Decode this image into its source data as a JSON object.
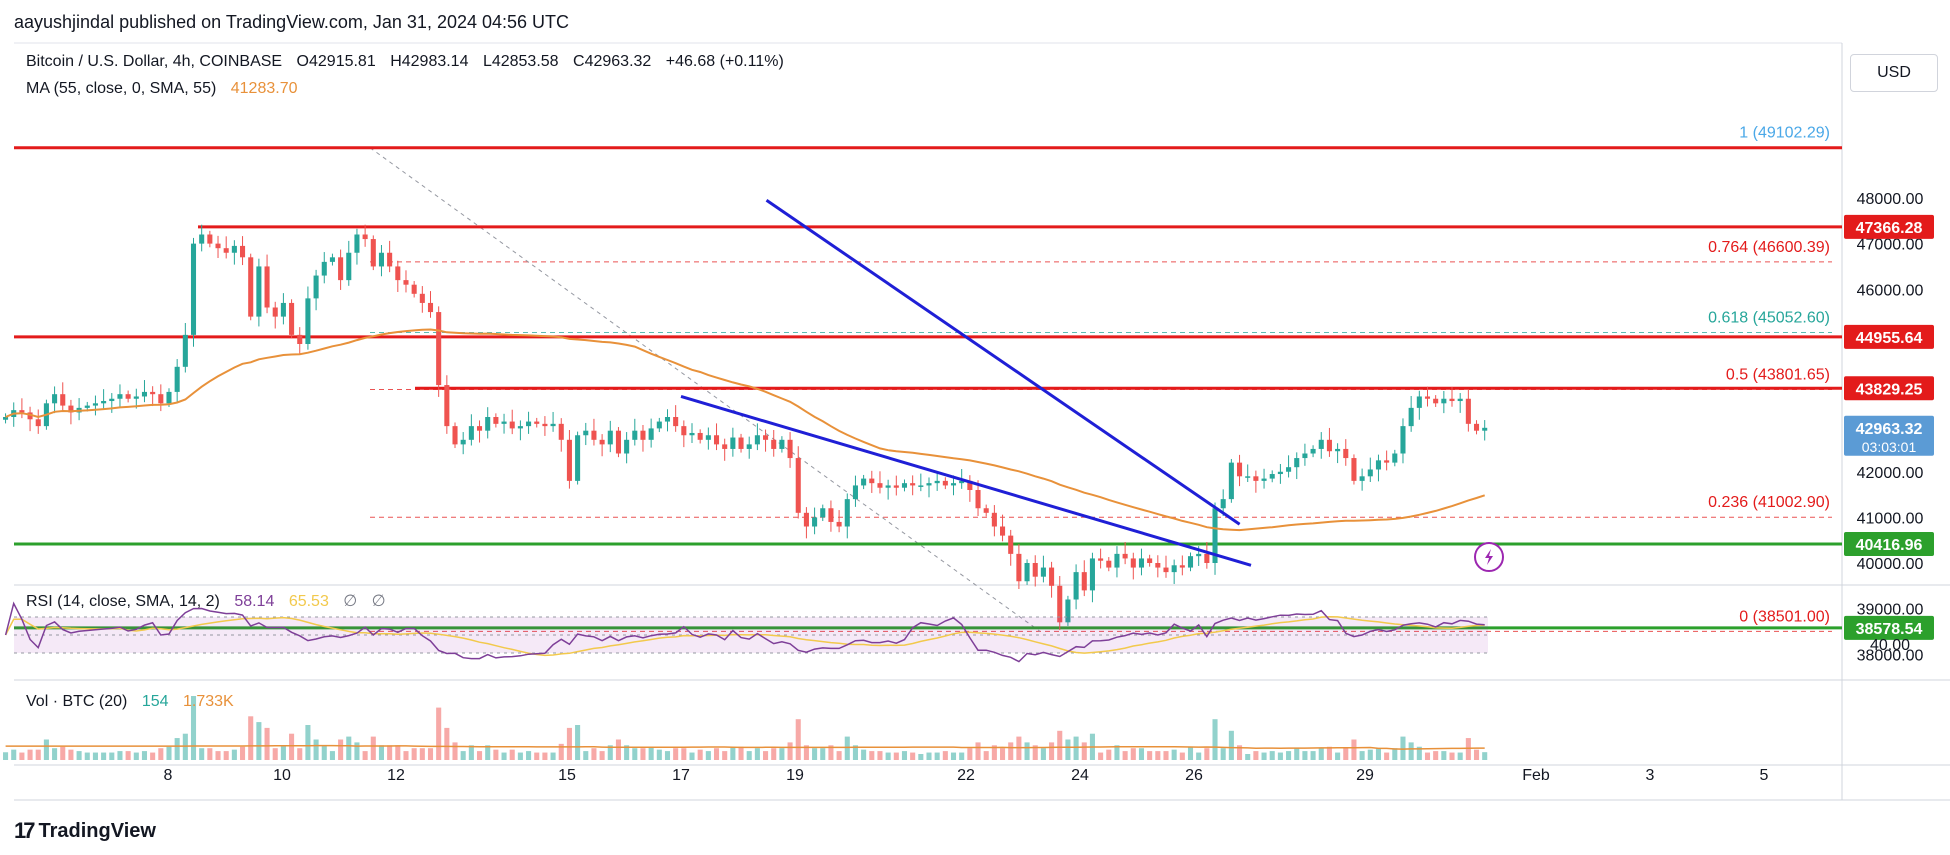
{
  "header": {
    "published_by": "aayushjindal published on TradingView.com, Jan 31, 2024 04:56 UTC"
  },
  "legend": {
    "symbol": "Bitcoin / U.S. Dollar, 4h, COINBASE",
    "open": "O42915.81",
    "high": "H42983.14",
    "low": "L42853.58",
    "close": "C42963.32",
    "change": "+46.68 (+0.11%)",
    "ma_label": "MA (55, close, 0, SMA, 55)",
    "ma_value": "41283.70",
    "rsi_label": "RSI (14, close, SMA, 14, 2)",
    "rsi_value": "58.14",
    "rsi_ma_value": "65.53",
    "rsi_extra1": "∅",
    "rsi_extra2": "∅",
    "vol_label": "Vol · BTC (20)",
    "vol_value": "154",
    "vol_ma_value": "1.733K"
  },
  "currency_button": "USD",
  "branding": {
    "logo_text": "TradingView",
    "logo_mark": "17"
  },
  "icons": {
    "lightning": "lightning-icon",
    "logo": "tradingview-logo-icon"
  },
  "colors": {
    "up": "#26a69a",
    "down": "#ef5350",
    "ma": "#e8913a",
    "support": "#2ca02c",
    "resistance": "#e31b1b",
    "trendline": "#1f1fd6",
    "rsi": "#7e3f98",
    "rsi_ma": "#f2c94c",
    "fib": "#e31b1b",
    "fib_618": "#26a69a",
    "fib_1": "#4aa8e8"
  },
  "chart_data": {
    "type": "candlestick",
    "title": "Bitcoin / U.S. Dollar, 4h, COINBASE",
    "x_ticks": [
      "8",
      "10",
      "12",
      "15",
      "17",
      "19",
      "22",
      "24",
      "26",
      "29",
      "Feb",
      "3",
      "5"
    ],
    "y_ticks": [
      38000,
      39000,
      40000,
      41000,
      42000,
      46000,
      47000,
      48000
    ],
    "ylim": [
      37800,
      49700
    ],
    "price_labels": [
      {
        "value": "47366.28",
        "color": "#e31b1b",
        "price": 47366.28
      },
      {
        "value": "44955.64",
        "color": "#e31b1b",
        "price": 44955.64
      },
      {
        "value": "43829.25",
        "color": "#e31b1b",
        "price": 43829.25
      },
      {
        "value": "42963.32",
        "sub": "03:03:01",
        "color": "#5b9bd5",
        "price": 42963.32
      },
      {
        "value": "40416.96",
        "color": "#2ca02c",
        "price": 40416.96
      },
      {
        "value": "38578.54",
        "color": "#2ca02c",
        "price": 38578.54
      }
    ],
    "fib_levels": [
      {
        "label": "1 (49102.29)",
        "value": 49102.29
      },
      {
        "label": "0.764 (46600.39)",
        "value": 46600.39
      },
      {
        "label": "0.618 (45052.60)",
        "value": 45052.6
      },
      {
        "label": "0.5 (43801.65)",
        "value": 43801.65
      },
      {
        "label": "0.236 (41002.90)",
        "value": 41002.9
      },
      {
        "label": "0 (38501.00)",
        "value": 38501.0
      }
    ],
    "horizontal_lines": [
      {
        "name": "resistance",
        "value": 49102
      },
      {
        "name": "resistance",
        "value": 47366.28
      },
      {
        "name": "resistance",
        "value": 44955.64
      },
      {
        "name": "resistance",
        "value": 43829.25
      },
      {
        "name": "support",
        "value": 40416.96
      },
      {
        "name": "support",
        "value": 38578.54
      }
    ],
    "trendlines": [
      {
        "from": [
          18.5,
          47950
        ],
        "to": [
          26.8,
          40850
        ]
      },
      {
        "from": [
          17.0,
          43650
        ],
        "to": [
          27.0,
          39950
        ]
      }
    ],
    "closes": [
      43200,
      43350,
      43300,
      43150,
      43000,
      43500,
      43700,
      43450,
      43300,
      43400,
      43450,
      43500,
      43550,
      43600,
      43700,
      43600,
      43650,
      43750,
      43700,
      43500,
      43750,
      44300,
      45000,
      47000,
      47200,
      47000,
      46900,
      46800,
      46950,
      46700,
      45400,
      46500,
      45600,
      45400,
      45700,
      45000,
      44800,
      45800,
      46300,
      46600,
      46700,
      46200,
      46800,
      47200,
      47100,
      46500,
      46800,
      46500,
      46200,
      46100,
      45900,
      45700,
      45500,
      43900,
      43000,
      42600,
      42700,
      43000,
      42900,
      43200,
      43050,
      43100,
      42950,
      43000,
      43100,
      43050,
      43000,
      43050,
      42700,
      41800,
      42800,
      42900,
      42700,
      42600,
      42900,
      42400,
      42700,
      42900,
      42700,
      42950,
      43100,
      43200,
      43000,
      42800,
      42850,
      42700,
      42800,
      42600,
      42500,
      42750,
      42500,
      42600,
      42800,
      42700,
      42500,
      42700,
      42300,
      41100,
      40800,
      41000,
      41200,
      40900,
      40800,
      41400,
      41700,
      41850,
      41750,
      41650,
      41700,
      41650,
      41750,
      41700,
      41700,
      41750,
      41800,
      41700,
      41750,
      41800,
      41600,
      41200,
      41100,
      40800,
      40600,
      40200,
      39600,
      40000,
      39700,
      39900,
      39500,
      38700,
      39200,
      39800,
      39400,
      40100,
      40050,
      39900,
      40200,
      40100,
      39900,
      40100,
      40000,
      39900,
      39800,
      39950,
      39900,
      40150,
      40200,
      40000,
      41200,
      41400,
      42200,
      41900,
      41900,
      41800,
      41850,
      41950,
      42000,
      42100,
      42300,
      42400,
      42500,
      42700,
      42450,
      42500,
      42300,
      41800,
      41900,
      42050,
      42250,
      42200,
      42400,
      43000,
      43400,
      43650,
      43600,
      43500,
      43600,
      43550,
      43600,
      43050,
      42900,
      42963
    ],
    "rsi": {
      "levels": [
        70,
        50,
        30
      ],
      "ylim": [
        0,
        100
      ],
      "last": 58.14,
      "ma_last": 65.53
    },
    "volume": {
      "last": 154,
      "ma_last": "1.733K"
    }
  }
}
